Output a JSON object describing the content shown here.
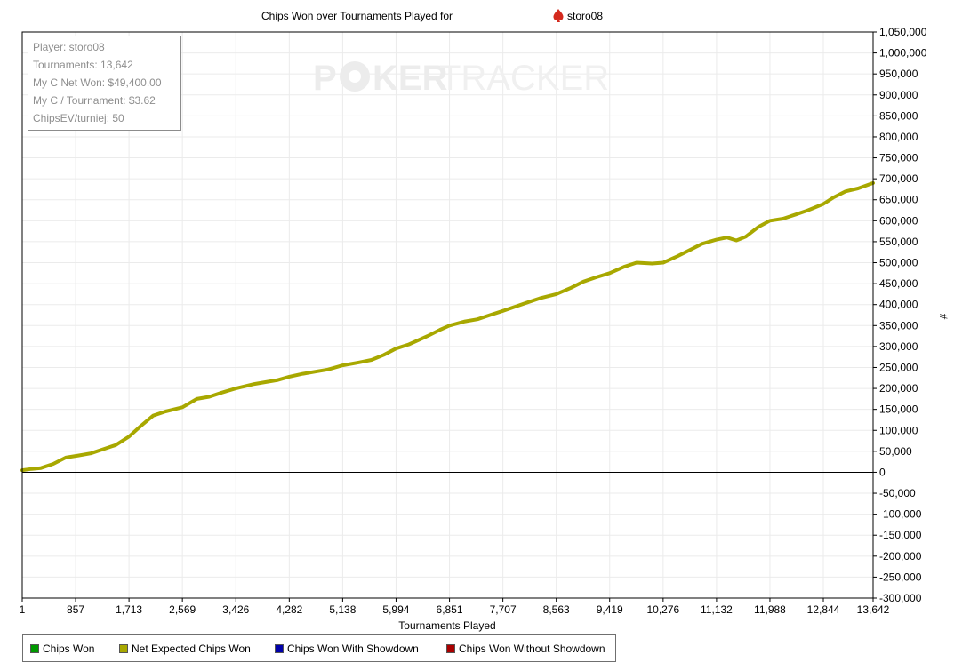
{
  "chart_data": {
    "type": "line",
    "title": "Chips Won over Tournaments Played for",
    "player_name": "storo08",
    "xlabel": "Tournaments Played",
    "ylabel": "#",
    "xlim": [
      1,
      13642
    ],
    "ylim": [
      -300000,
      1050000
    ],
    "x_ticks": [
      "1",
      "857",
      "1,713",
      "2,569",
      "3,426",
      "4,282",
      "5,138",
      "5,994",
      "6,851",
      "7,707",
      "8,563",
      "9,419",
      "10,276",
      "11,132",
      "11,988",
      "12,844",
      "13,642"
    ],
    "y_ticks": [
      "1,050,000",
      "1,000,000",
      "950,000",
      "900,000",
      "850,000",
      "800,000",
      "750,000",
      "700,000",
      "650,000",
      "600,000",
      "550,000",
      "500,000",
      "450,000",
      "400,000",
      "350,000",
      "300,000",
      "250,000",
      "200,000",
      "150,000",
      "100,000",
      "50,000",
      "0",
      "-50,000",
      "-100,000",
      "-150,000",
      "-200,000",
      "-250,000",
      "-300,000"
    ],
    "grid": true,
    "y_axis_side": "right",
    "legend_position": "bottom-left",
    "series": [
      {
        "name": "Net Expected Chips Won",
        "color": "#a8a800",
        "x": [
          1,
          150,
          300,
          500,
          700,
          900,
          1100,
          1300,
          1500,
          1713,
          1900,
          2100,
          2300,
          2569,
          2800,
          3000,
          3200,
          3426,
          3700,
          3900,
          4100,
          4282,
          4500,
          4700,
          4900,
          5138,
          5400,
          5600,
          5800,
          5994,
          6200,
          6500,
          6700,
          6851,
          7100,
          7300,
          7500,
          7707,
          7900,
          8100,
          8300,
          8563,
          8800,
          9000,
          9200,
          9419,
          9650,
          9850,
          10100,
          10276,
          10500,
          10700,
          10900,
          11132,
          11300,
          11450,
          11600,
          11800,
          11988,
          12200,
          12400,
          12600,
          12844,
          13000,
          13200,
          13400,
          13642
        ],
        "values": [
          5000,
          8000,
          10000,
          20000,
          35000,
          40000,
          45000,
          55000,
          65000,
          85000,
          110000,
          135000,
          145000,
          155000,
          175000,
          180000,
          190000,
          200000,
          210000,
          215000,
          220000,
          228000,
          235000,
          240000,
          245000,
          255000,
          262000,
          268000,
          280000,
          295000,
          305000,
          325000,
          340000,
          350000,
          360000,
          365000,
          375000,
          385000,
          395000,
          405000,
          415000,
          425000,
          440000,
          455000,
          465000,
          475000,
          490000,
          500000,
          498000,
          500000,
          515000,
          530000,
          545000,
          555000,
          560000,
          553000,
          562000,
          585000,
          600000,
          605000,
          615000,
          625000,
          640000,
          655000,
          670000,
          677000,
          690000
        ]
      }
    ],
    "legend": [
      {
        "label": "Chips Won",
        "color": "#009900"
      },
      {
        "label": "Net Expected Chips Won",
        "color": "#a8a800"
      },
      {
        "label": "Chips Won With Showdown",
        "color": "#0000aa"
      },
      {
        "label": "Chips Won Without Showdown",
        "color": "#aa0000"
      }
    ]
  },
  "stats": {
    "player": "Player: storo08",
    "tournaments": "Tournaments: 13,642",
    "net_won": "My C Net Won: $49,400.00",
    "per_tournament": "My C / Tournament: $3.62",
    "chips_ev": "ChipsEV/turniej: 50"
  },
  "watermark": {
    "text_left": "P",
    "text_mid": "KER",
    "text_right": "TRACKER"
  },
  "icons": {
    "spade": "spade-icon"
  }
}
